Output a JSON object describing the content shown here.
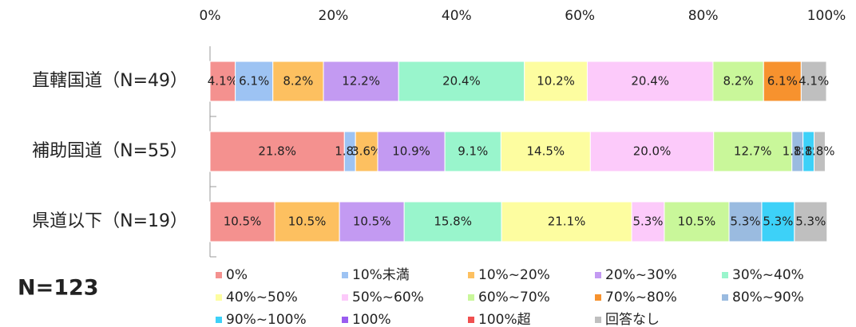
{
  "chart_data": {
    "type": "stacked_barh",
    "note": "N=123",
    "categories": [
      "直轄国道（N=49）",
      "補助国道（N=55）",
      "県道以下（N=19）"
    ],
    "xlim": [
      0,
      100
    ],
    "xticks": [
      {
        "value": 0,
        "label": "0%"
      },
      {
        "value": 20,
        "label": "20%"
      },
      {
        "value": 40,
        "label": "40%"
      },
      {
        "value": 60,
        "label": "60%"
      },
      {
        "value": 80,
        "label": "80%"
      },
      {
        "value": 100,
        "label": "100%"
      }
    ],
    "series": [
      {
        "name": "0%",
        "color": "#f4918f",
        "values": [
          4.1,
          21.8,
          10.5
        ],
        "value_labels": [
          "4.1%",
          "21.8%",
          "10.5%"
        ]
      },
      {
        "name": "10%未満",
        "color": "#9dc3f3",
        "values": [
          6.1,
          1.8,
          0
        ],
        "value_labels": [
          "6.1%",
          "1.8%",
          null
        ]
      },
      {
        "name": "10%~20%",
        "color": "#fdc060",
        "values": [
          8.2,
          3.6,
          10.5
        ],
        "value_labels": [
          "8.2%",
          "3.6%",
          "10.5%"
        ]
      },
      {
        "name": "20%~30%",
        "color": "#c39af2",
        "values": [
          12.2,
          10.9,
          10.5
        ],
        "value_labels": [
          "12.2%",
          "10.9%",
          "10.5%"
        ]
      },
      {
        "name": "30%~40%",
        "color": "#99f5cc",
        "values": [
          20.4,
          9.1,
          15.8
        ],
        "value_labels": [
          "20.4%",
          "9.1%",
          "15.8%"
        ]
      },
      {
        "name": "40%~50%",
        "color": "#fdfda0",
        "values": [
          10.2,
          14.5,
          21.1
        ],
        "value_labels": [
          "10.2%",
          "14.5%",
          "21.1%"
        ]
      },
      {
        "name": "50%~60%",
        "color": "#fccafa",
        "values": [
          20.4,
          20.0,
          5.3
        ],
        "value_labels": [
          "20.4%",
          "20.0%",
          "5.3%"
        ]
      },
      {
        "name": "60%~70%",
        "color": "#c9f79a",
        "values": [
          8.2,
          12.7,
          10.5
        ],
        "value_labels": [
          "8.2%",
          "12.7%",
          "10.5%"
        ]
      },
      {
        "name": "70%~80%",
        "color": "#f7922e",
        "values": [
          6.1,
          0,
          0
        ],
        "value_labels": [
          "6.1%",
          null,
          null
        ]
      },
      {
        "name": "80%~90%",
        "color": "#9abbe0",
        "values": [
          0,
          1.8,
          5.3
        ],
        "value_labels": [
          null,
          "1.8%",
          "5.3%"
        ]
      },
      {
        "name": "90%~100%",
        "color": "#3dd1f8",
        "values": [
          0,
          1.8,
          5.3
        ],
        "value_labels": [
          null,
          "1.8%",
          "5.3%"
        ]
      },
      {
        "name": "100%",
        "color": "#9a5cf0",
        "values": [
          0,
          0,
          0
        ],
        "value_labels": [
          null,
          null,
          null
        ]
      },
      {
        "name": "100%超",
        "color": "#f05050",
        "values": [
          0,
          0,
          0
        ],
        "value_labels": [
          null,
          null,
          null
        ]
      },
      {
        "name": "回答なし",
        "color": "#bfbfbf",
        "values": [
          4.1,
          1.8,
          5.3
        ],
        "value_labels": [
          "4.1%",
          "1.8%",
          "5.3%"
        ]
      }
    ]
  }
}
